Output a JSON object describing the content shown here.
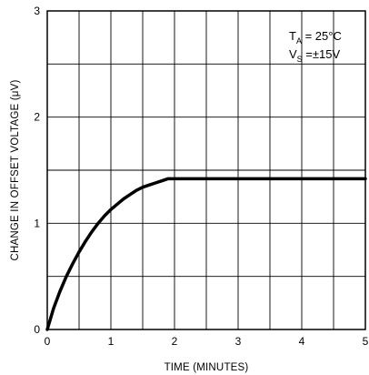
{
  "chart_data": {
    "type": "line",
    "title": "",
    "xlabel": "TIME (MINUTES)",
    "ylabel": "CHANGE IN OFFSET VOLTAGE (μV)",
    "xlim": [
      0,
      5
    ],
    "ylim": [
      0,
      3
    ],
    "x_ticks": [
      "0",
      "1",
      "2",
      "3",
      "4",
      "5"
    ],
    "y_ticks": [
      "0",
      "1",
      "2",
      "3"
    ],
    "grid": true,
    "grid_x": [
      0.5,
      1,
      1.5,
      2,
      2.5,
      3,
      3.5,
      4,
      4.5
    ],
    "grid_y": [
      0.5,
      1,
      1.5,
      2,
      2.5
    ],
    "annotations": {
      "ta_main": "T",
      "ta_sub": "A",
      "ta_value": " = 25°C",
      "vs_main": "V",
      "vs_sub": "S",
      "vs_value": " =±15V"
    },
    "series": [
      {
        "x": [
          0,
          0.1,
          0.2,
          0.3,
          0.4,
          0.5,
          0.6,
          0.7,
          0.8,
          0.9,
          1.0,
          1.1,
          1.2,
          1.3,
          1.4,
          1.5,
          1.6,
          1.7,
          1.8,
          1.9,
          2.0,
          2.5,
          3.0,
          3.5,
          4.0,
          4.5,
          5.0
        ],
        "y": [
          0,
          0.2,
          0.36,
          0.5,
          0.62,
          0.73,
          0.83,
          0.92,
          1.0,
          1.07,
          1.13,
          1.18,
          1.23,
          1.27,
          1.31,
          1.34,
          1.36,
          1.38,
          1.4,
          1.42,
          1.42,
          1.42,
          1.42,
          1.42,
          1.42,
          1.42,
          1.42
        ]
      }
    ],
    "colors": {
      "line": "#000000",
      "grid": "#000000",
      "background": "#ffffff"
    }
  }
}
